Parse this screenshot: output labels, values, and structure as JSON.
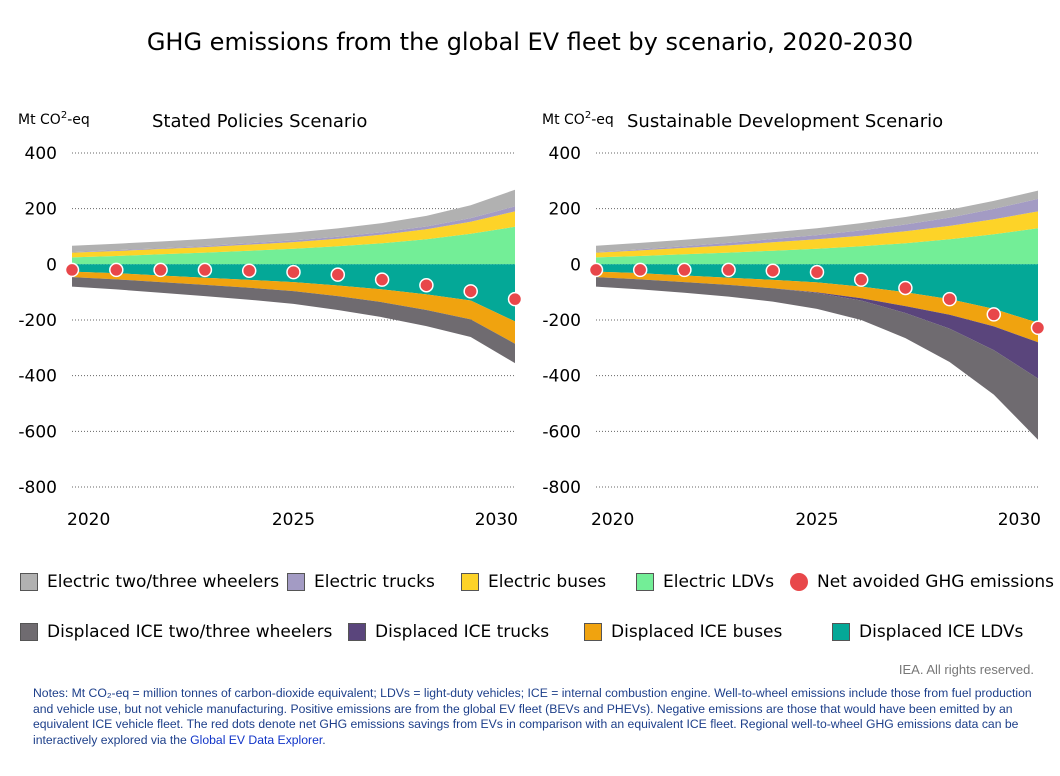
{
  "title": "GHG emissions from the global EV fleet by scenario, 2020-2030",
  "unit_label": "Mt CO²-eq",
  "colors": {
    "electric_23w": "#b1b1b1",
    "electric_trucks": "#a39bc4",
    "electric_buses": "#fdd328",
    "electric_ldv": "#73ee97",
    "displaced_23w": "#6f6b70",
    "displaced_trucks": "#5a457c",
    "displaced_buses": "#f0a30f",
    "displaced_ldv": "#04a897",
    "net_avoided": "#e8474a",
    "grid": "#666666"
  },
  "legend": [
    {
      "label": "Electric two/three wheelers",
      "color_key": "electric_23w",
      "type": "swatch"
    },
    {
      "label": "Electric trucks",
      "color_key": "electric_trucks",
      "type": "swatch"
    },
    {
      "label": "Electric buses",
      "color_key": "electric_buses",
      "type": "swatch"
    },
    {
      "label": "Electric LDVs",
      "color_key": "electric_ldv",
      "type": "swatch"
    },
    {
      "label": "Net avoided GHG emissions",
      "color_key": "net_avoided",
      "type": "dot"
    },
    {
      "label": "Displaced ICE two/three wheelers",
      "color_key": "displaced_23w",
      "type": "swatch"
    },
    {
      "label": "Displaced ICE trucks",
      "color_key": "displaced_trucks",
      "type": "swatch"
    },
    {
      "label": "Displaced ICE buses",
      "color_key": "displaced_buses",
      "type": "swatch"
    },
    {
      "label": "Displaced ICE LDVs",
      "color_key": "displaced_ldv",
      "type": "swatch"
    }
  ],
  "rights": "IEA. All rights reserved.",
  "notes": {
    "text": "Notes: Mt CO₂-eq = million tonnes of carbon-dioxide equivalent; LDVs = light-duty vehicles; ICE = internal combustion engine. Well-to-wheel emissions include those from fuel production and vehicle use, but not vehicle manufacturing. Positive emissions are from the global EV fleet (BEVs and PHEVs). Negative emissions are those that would have been emitted by an equivalent ICE vehicle fleet. The red dots denote net GHG emissions savings from EVs in comparison with an equivalent ICE fleet. Regional well-to-wheel GHG emissions data can be interactively explored via the ",
    "link": "Global EV Data Explorer",
    "end": "."
  },
  "chart_data": [
    {
      "type": "area",
      "title": "Stated Policies Scenario",
      "ylabel": "Mt CO²-eq",
      "ylim": [
        -800,
        400
      ],
      "yticks": [
        400,
        200,
        0,
        -200,
        -400,
        -600,
        -800
      ],
      "xlim": [
        2020,
        2030
      ],
      "xticks": [
        2020,
        2025,
        2030
      ],
      "grid": true,
      "x": [
        2020,
        2021,
        2022,
        2023,
        2024,
        2025,
        2026,
        2027,
        2028,
        2029,
        2030
      ],
      "positive_series": [
        {
          "name": "Electric LDVs",
          "color_key": "electric_ldv",
          "values": [
            25,
            30,
            36,
            42,
            49,
            56,
            65,
            76,
            90,
            110,
            135
          ]
        },
        {
          "name": "Electric buses",
          "color_key": "electric_buses",
          "values": [
            17,
            18,
            19,
            20,
            22,
            24,
            27,
            31,
            36,
            43,
            55
          ]
        },
        {
          "name": "Electric trucks",
          "color_key": "electric_trucks",
          "values": [
            2,
            3,
            3,
            4,
            5,
            6,
            7,
            8,
            10,
            13,
            18
          ]
        },
        {
          "name": "Electric two/three wheelers",
          "color_key": "electric_23w",
          "values": [
            23,
            23,
            24,
            25,
            26,
            28,
            30,
            33,
            38,
            46,
            60
          ]
        }
      ],
      "negative_series": [
        {
          "name": "Displaced ICE LDVs",
          "color_key": "displaced_ldv",
          "values": [
            -26,
            -32,
            -40,
            -48,
            -56,
            -64,
            -76,
            -90,
            -108,
            -130,
            -205
          ]
        },
        {
          "name": "Displaced ICE buses",
          "color_key": "displaced_buses",
          "values": [
            -20,
            -22,
            -24,
            -26,
            -28,
            -32,
            -38,
            -46,
            -56,
            -68,
            -80
          ]
        },
        {
          "name": "Displaced ICE trucks",
          "color_key": "displaced_trucks",
          "values": [
            0,
            0,
            0,
            0,
            0,
            0,
            0,
            0,
            0,
            0,
            0
          ]
        },
        {
          "name": "Displaced ICE two/three wheelers",
          "color_key": "displaced_23w",
          "values": [
            -34,
            -36,
            -38,
            -40,
            -43,
            -46,
            -50,
            -54,
            -58,
            -63,
            -70
          ]
        }
      ],
      "net_avoided": {
        "name": "Net avoided GHG emissions",
        "x": [
          2020,
          2021,
          2022,
          2023,
          2024,
          2025,
          2026,
          2027,
          2028,
          2029,
          2030
        ],
        "values": [
          -20,
          -20,
          -20,
          -20,
          -23,
          -28,
          -37,
          -55,
          -75,
          -97,
          -125
        ]
      }
    },
    {
      "type": "area",
      "title": "Sustainable Development Scenario",
      "ylabel": "Mt CO²-eq",
      "ylim": [
        -800,
        400
      ],
      "yticks": [
        400,
        200,
        0,
        -200,
        -400,
        -600,
        -800
      ],
      "xlim": [
        2020,
        2030
      ],
      "xticks": [
        2020,
        2025,
        2030
      ],
      "grid": true,
      "x": [
        2020,
        2021,
        2022,
        2023,
        2024,
        2025,
        2026,
        2027,
        2028,
        2029,
        2030
      ],
      "positive_series": [
        {
          "name": "Electric LDVs",
          "color_key": "electric_ldv",
          "values": [
            25,
            30,
            36,
            42,
            49,
            56,
            65,
            76,
            90,
            108,
            130
          ]
        },
        {
          "name": "Electric buses",
          "color_key": "electric_buses",
          "values": [
            17,
            20,
            23,
            26,
            30,
            34,
            38,
            43,
            48,
            54,
            60
          ]
        },
        {
          "name": "Electric trucks",
          "color_key": "electric_trucks",
          "values": [
            2,
            4,
            6,
            9,
            12,
            15,
            19,
            24,
            30,
            37,
            45
          ]
        },
        {
          "name": "Electric two/three wheelers",
          "color_key": "electric_23w",
          "values": [
            23,
            23,
            23,
            24,
            24,
            25,
            26,
            27,
            28,
            29,
            30
          ]
        }
      ],
      "negative_series": [
        {
          "name": "Displaced ICE LDVs",
          "color_key": "displaced_ldv",
          "values": [
            -26,
            -32,
            -40,
            -48,
            -56,
            -65,
            -80,
            -100,
            -125,
            -160,
            -210
          ]
        },
        {
          "name": "Displaced ICE buses",
          "color_key": "displaced_buses",
          "values": [
            -20,
            -22,
            -24,
            -26,
            -30,
            -36,
            -42,
            -50,
            -56,
            -63,
            -70
          ]
        },
        {
          "name": "Displaced ICE trucks",
          "color_key": "displaced_trucks",
          "values": [
            0,
            0,
            0,
            0,
            0,
            -2,
            -8,
            -25,
            -50,
            -85,
            -130
          ]
        },
        {
          "name": "Displaced ICE two/three wheelers",
          "color_key": "displaced_23w",
          "values": [
            -34,
            -36,
            -38,
            -42,
            -48,
            -57,
            -70,
            -90,
            -120,
            -160,
            -220
          ]
        }
      ],
      "net_avoided": {
        "name": "Net avoided GHG emissions",
        "x": [
          2020,
          2021,
          2022,
          2023,
          2024,
          2025,
          2026,
          2027,
          2028,
          2029,
          2030
        ],
        "values": [
          -20,
          -20,
          -20,
          -20,
          -23,
          -28,
          -55,
          -85,
          -125,
          -180,
          -228
        ]
      }
    }
  ]
}
